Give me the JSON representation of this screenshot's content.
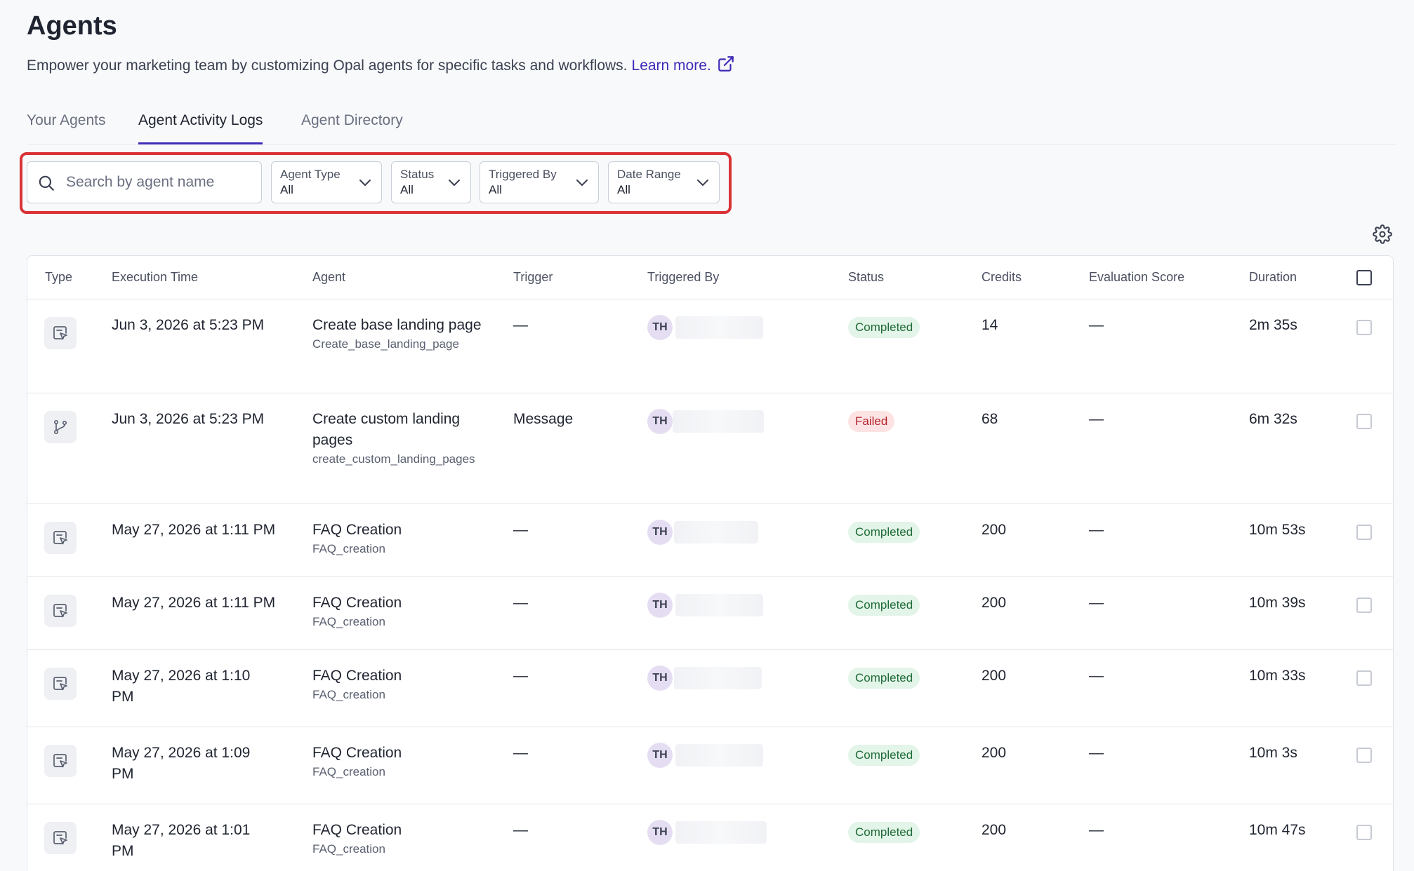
{
  "page": {
    "title": "Agents",
    "subtitle": "Empower your marketing team by customizing Opal agents for specific tasks and workflows.",
    "learn_more": "Learn more."
  },
  "tabs": [
    {
      "label": "Your Agents",
      "active": false
    },
    {
      "label": "Agent Activity Logs",
      "active": true
    },
    {
      "label": "Agent Directory",
      "active": false
    }
  ],
  "filters": {
    "search_placeholder": "Search by agent name",
    "agent_type": {
      "label": "Agent Type",
      "value": "All"
    },
    "status": {
      "label": "Status",
      "value": "All"
    },
    "triggered_by": {
      "label": "Triggered By",
      "value": "All"
    },
    "date_range": {
      "label": "Date Range",
      "value": "All"
    }
  },
  "columns": {
    "type": "Type",
    "execution_time": "Execution Time",
    "agent": "Agent",
    "trigger": "Trigger",
    "triggered_by": "Triggered By",
    "status": "Status",
    "credits": "Credits",
    "evaluation_score": "Evaluation Score",
    "duration": "Duration"
  },
  "rows": [
    {
      "type_icon": "specialized-agent-icon",
      "time": "Jun 3, 2026 at 5:23 PM",
      "agent": "Create base landing page",
      "agent_id": "Create_base_landing_page",
      "trigger": "—",
      "initials": "TH",
      "status": "Completed",
      "credits": "14",
      "score": "—",
      "duration": "2m 35s"
    },
    {
      "type_icon": "workflow-agent-icon",
      "time": "Jun 3, 2026 at 5:23 PM",
      "agent": "Create custom landing pages",
      "agent_id": "create_custom_landing_pages",
      "trigger": "Message",
      "initials": "TH",
      "status": "Failed",
      "credits": "68",
      "score": "—",
      "duration": "6m 32s"
    },
    {
      "type_icon": "specialized-agent-icon",
      "time": "May 27, 2026 at 1:11 PM",
      "agent": "FAQ Creation",
      "agent_id": "FAQ_creation",
      "trigger": "—",
      "initials": "TH",
      "status": "Completed",
      "credits": "200",
      "score": "—",
      "duration": "10m 53s"
    },
    {
      "type_icon": "specialized-agent-icon",
      "time": "May 27, 2026 at 1:11 PM",
      "agent": "FAQ Creation",
      "agent_id": "FAQ_creation",
      "trigger": "—",
      "initials": "TH",
      "status": "Completed",
      "credits": "200",
      "score": "—",
      "duration": "10m 39s"
    },
    {
      "type_icon": "specialized-agent-icon",
      "time": "May 27, 2026 at 1:10 PM",
      "agent": "FAQ Creation",
      "agent_id": "FAQ_creation",
      "trigger": "—",
      "initials": "TH",
      "status": "Completed",
      "credits": "200",
      "score": "—",
      "duration": "10m 33s"
    },
    {
      "type_icon": "specialized-agent-icon",
      "time": "May 27, 2026 at 1:09 PM",
      "agent": "FAQ Creation",
      "agent_id": "FAQ_creation",
      "trigger": "—",
      "initials": "TH",
      "status": "Completed",
      "credits": "200",
      "score": "—",
      "duration": "10m 3s"
    },
    {
      "type_icon": "specialized-agent-icon",
      "time": "May 27, 2026 at 1:01 PM",
      "agent": "FAQ Creation",
      "agent_id": "FAQ_creation",
      "trigger": "—",
      "initials": "TH",
      "status": "Completed",
      "credits": "200",
      "score": "—",
      "duration": "10m 47s"
    }
  ],
  "colors": {
    "accent": "#3d2bb8",
    "highlight_outline": "#d93338",
    "completed": "#1e6b37",
    "failed": "#b3232b"
  }
}
